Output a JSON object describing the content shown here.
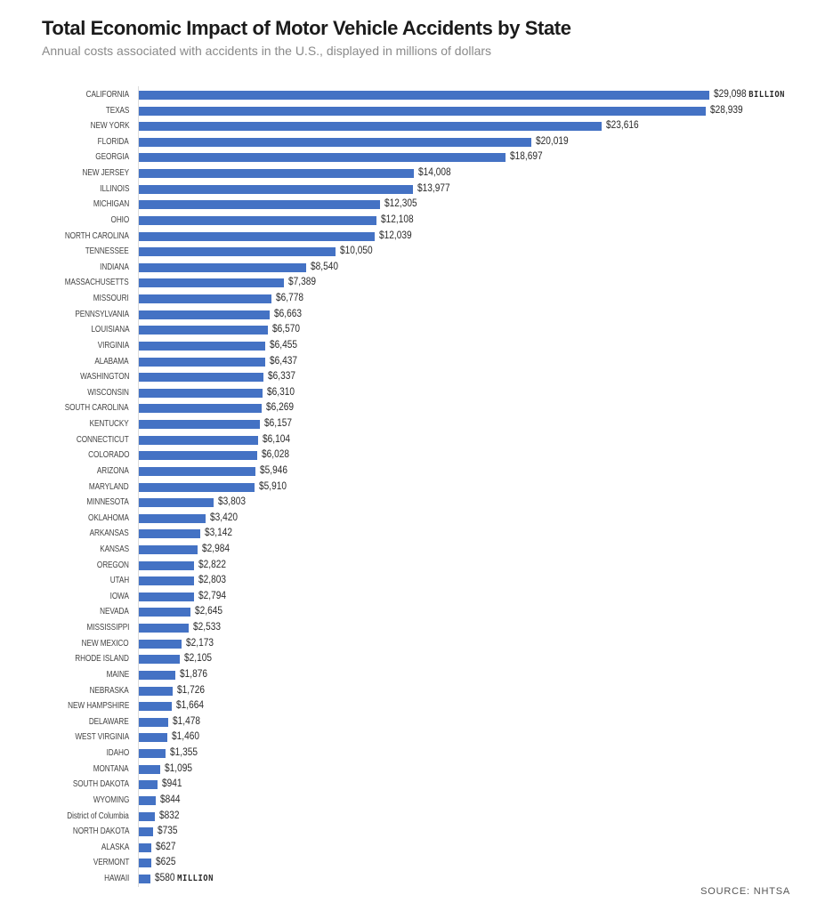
{
  "header": {
    "title": "Total Economic Impact of Motor Vehicle Accidents by State",
    "subtitle": "Annual costs associated with accidents in the U.S., displayed in millions of dollars"
  },
  "footer": {
    "source": "SOURCE: NHTSA"
  },
  "style": {
    "bar_color": "#4472c4",
    "axis_color": "#dcdcdc"
  },
  "chart_data": {
    "type": "bar",
    "orientation": "horizontal",
    "title": "Total Economic Impact of Motor Vehicle Accidents by State",
    "subtitle": "Annual costs associated with accidents in the U.S., displayed in millions of dollars",
    "xlabel": "",
    "ylabel": "",
    "units": "millions of dollars",
    "grid": false,
    "legend": "none",
    "source": "SOURCE: NHTSA",
    "xlim": [
      0,
      29098
    ],
    "categories": [
      "CALIFORNIA",
      "TEXAS",
      "NEW YORK",
      "FLORIDA",
      "GEORGIA",
      "NEW JERSEY",
      "ILLINOIS",
      "MICHIGAN",
      "OHIO",
      "NORTH CAROLINA",
      "TENNESSEE",
      "INDIANA",
      "MASSACHUSETTS",
      "MISSOURI",
      "PENNSYLVANIA",
      "LOUISIANA",
      "VIRGINIA",
      "ALABAMA",
      "WASHINGTON",
      "WISCONSIN",
      "SOUTH CAROLINA",
      "KENTUCKY",
      "CONNECTICUT",
      "COLORADO",
      "ARIZONA",
      "MARYLAND",
      "MINNESOTA",
      "OKLAHOMA",
      "ARKANSAS",
      "KANSAS",
      "OREGON",
      "UTAH",
      "IOWA",
      "NEVADA",
      "MISSISSIPPI",
      "NEW MEXICO",
      "RHODE ISLAND",
      "MAINE",
      "NEBRASKA",
      "NEW HAMPSHIRE",
      "DELAWARE",
      "WEST VIRGINIA",
      "IDAHO",
      "MONTANA",
      "SOUTH DAKOTA",
      "WYOMING",
      "District of Columbia",
      "NORTH DAKOTA",
      "ALASKA",
      "VERMONT",
      "HAWAII"
    ],
    "values": [
      29098,
      28939,
      23616,
      20019,
      18697,
      14008,
      13977,
      12305,
      12108,
      12039,
      10050,
      8540,
      7389,
      6778,
      6663,
      6570,
      6455,
      6437,
      6337,
      6310,
      6269,
      6157,
      6104,
      6028,
      5946,
      5910,
      3803,
      3420,
      3142,
      2984,
      2822,
      2803,
      2794,
      2645,
      2533,
      2173,
      2105,
      1876,
      1726,
      1664,
      1478,
      1460,
      1355,
      1095,
      941,
      844,
      832,
      735,
      627,
      625,
      580
    ],
    "value_labels": [
      "$29,098",
      "$28,939",
      "$23,616",
      "$20,019",
      "$18,697",
      "$14,008",
      "$13,977",
      "$12,305",
      "$12,108",
      "$12,039",
      "$10,050",
      "$8,540",
      "$7,389",
      "$6,778",
      "$6,663",
      "$6,570",
      "$6,455",
      "$6,437",
      "$6,337",
      "$6,310",
      "$6,269",
      "$6,157",
      "$6,104",
      "$6,028",
      "$5,946",
      "$5,910",
      "$3,803",
      "$3,420",
      "$3,142",
      "$2,984",
      "$2,822",
      "$2,803",
      "$2,794",
      "$2,645",
      "$2,533",
      "$2,173",
      "$2,105",
      "$1,876",
      "$1,726",
      "$1,664",
      "$1,478",
      "$1,460",
      "$1,355",
      "$1,095",
      "$941",
      "$844",
      "$832",
      "$735",
      "$627",
      "$625",
      "$580"
    ],
    "annotations": {
      "0": "BILLION",
      "50": "MILLION"
    }
  }
}
